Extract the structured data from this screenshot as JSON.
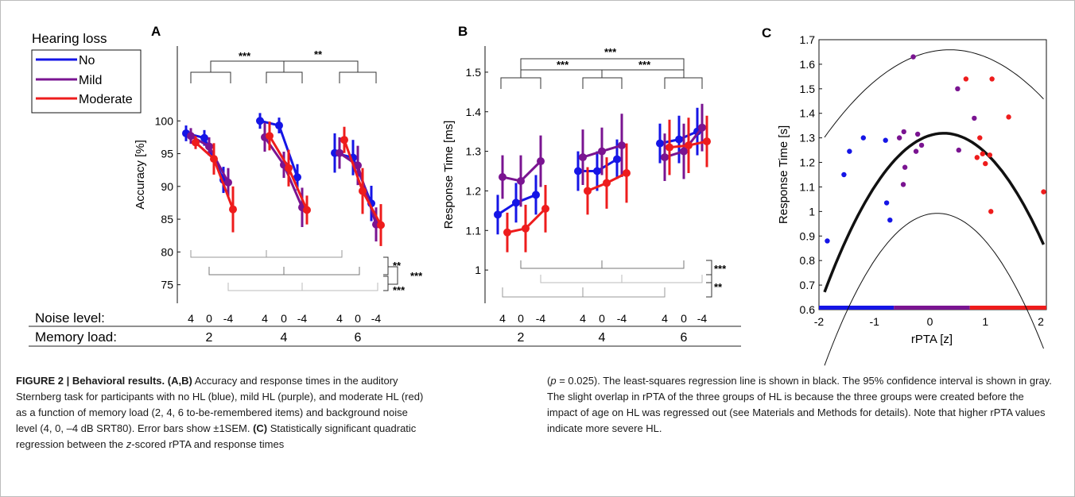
{
  "figure": {
    "panel_labels": {
      "a": "A",
      "b": "B",
      "c": "C"
    },
    "legend": {
      "title": "Hearing loss",
      "items": [
        {
          "label": "No",
          "color": "#1515e6"
        },
        {
          "label": "Mild",
          "color": "#7a1491"
        },
        {
          "label": "Moderate",
          "color": "#ee1c1c"
        }
      ]
    },
    "row_labels": {
      "noise": "Noise level:",
      "memory": "Memory load:"
    },
    "noise_levels": [
      "4",
      "0",
      "-4"
    ],
    "memory_loads": [
      "2",
      "4",
      "6"
    ],
    "significance": {
      "a_top_left": "***",
      "a_top_right": "**",
      "a_bottom_1": "**",
      "a_bottom_2": "***",
      "a_bottom_3": "***",
      "b_top": "***",
      "b_mid_left": "***",
      "b_mid_right": "***",
      "b_bottom_1": "***",
      "b_bottom_2": "**"
    }
  },
  "chart_data": [
    {
      "type": "line",
      "panel": "A",
      "ylabel": "Accuracy [%]",
      "ylim": [
        73.5,
        105
      ],
      "yticks": [
        "75",
        "80",
        "85",
        "90",
        "95",
        "100"
      ],
      "x_groups": [
        "2",
        "4",
        "6"
      ],
      "x_levels": [
        "4",
        "0",
        "-4"
      ],
      "series": [
        {
          "name": "No",
          "color": "#1515e6",
          "values": [
            [
              98.1,
              97.4,
              91.0
            ],
            [
              100.0,
              99.3,
              91.4
            ],
            [
              95.1,
              94.4,
              87.4
            ]
          ],
          "err": [
            1.2,
            1.2,
            2.0,
            1.2,
            1.2,
            2.0,
            3.0,
            2.7,
            2.7
          ]
        },
        {
          "name": "Mild",
          "color": "#7a1491",
          "values": [
            [
              97.7,
              96.1,
              90.6
            ],
            [
              97.5,
              93.3,
              86.8
            ],
            [
              95.1,
              93.2,
              84.2
            ]
          ],
          "err": [
            1.2,
            1.4,
            2.2,
            2.2,
            2.0,
            3.0,
            2.4,
            3.0,
            2.6
          ]
        },
        {
          "name": "Moderate",
          "color": "#ee1c1c",
          "values": [
            [
              96.7,
              94.2,
              86.5
            ],
            [
              97.7,
              92.8,
              86.4
            ],
            [
              97.1,
              89.3,
              84.1
            ]
          ],
          "err": [
            1.0,
            2.4,
            3.5,
            2.2,
            2.8,
            2.2,
            2.0,
            3.5,
            3.2
          ]
        }
      ]
    },
    {
      "type": "line",
      "panel": "B",
      "ylabel": "Response Time [ms]",
      "ylim": [
        0.92,
        1.56
      ],
      "yticks": [
        "1",
        "1.1",
        "1.2",
        "1.3",
        "1.4",
        "1.5"
      ],
      "x_groups": [
        "2",
        "4",
        "6"
      ],
      "x_levels": [
        "4",
        "0",
        "-4"
      ],
      "series": [
        {
          "name": "No",
          "color": "#1515e6",
          "values": [
            [
              1.14,
              1.17,
              1.19
            ],
            [
              1.25,
              1.25,
              1.28
            ],
            [
              1.32,
              1.33,
              1.35
            ]
          ],
          "err": [
            0.05,
            0.05,
            0.05,
            0.05,
            0.05,
            0.05,
            0.05,
            0.06,
            0.06
          ]
        },
        {
          "name": "Mild",
          "color": "#7a1491",
          "values": [
            [
              1.235,
              1.225,
              1.275
            ],
            [
              1.285,
              1.3,
              1.315
            ],
            [
              1.285,
              1.3,
              1.36
            ]
          ],
          "err": [
            0.055,
            0.065,
            0.065,
            0.07,
            0.06,
            0.08,
            0.06,
            0.07,
            0.06
          ]
        },
        {
          "name": "Moderate",
          "color": "#ee1c1c",
          "values": [
            [
              1.095,
              1.105,
              1.155
            ],
            [
              1.2,
              1.22,
              1.245
            ],
            [
              1.31,
              1.315,
              1.325
            ]
          ],
          "err": [
            0.05,
            0.06,
            0.06,
            0.06,
            0.065,
            0.075,
            0.07,
            0.07,
            0.065
          ]
        }
      ]
    },
    {
      "type": "scatter",
      "panel": "C",
      "xlabel": "rPTA [z]",
      "ylabel": "Response Time [s]",
      "xlim": [
        -2,
        2.1
      ],
      "ylim": [
        0.6,
        1.7
      ],
      "xticks": [
        "-2",
        "-1",
        "0",
        "1",
        "2"
      ],
      "yticks": [
        "0.6",
        "0.7",
        "0.8",
        "0.9",
        "1",
        "1.1",
        "1.2",
        "1.3",
        "1.4",
        "1.5",
        "1.6",
        "1.7"
      ],
      "group_bar": [
        {
          "color": "#1515e6",
          "from": -2,
          "to": -0.65
        },
        {
          "color": "#7a1491",
          "from": -0.65,
          "to": 0.72
        },
        {
          "color": "#ee1c1c",
          "from": 0.72,
          "to": 2.1
        }
      ],
      "points": [
        {
          "x": -1.85,
          "y": 0.88,
          "color": "#1515e6"
        },
        {
          "x": -1.55,
          "y": 1.15,
          "color": "#1515e6"
        },
        {
          "x": -1.45,
          "y": 1.245,
          "color": "#1515e6"
        },
        {
          "x": -1.2,
          "y": 1.3,
          "color": "#1515e6"
        },
        {
          "x": -0.8,
          "y": 1.29,
          "color": "#1515e6"
        },
        {
          "x": -0.78,
          "y": 1.035,
          "color": "#1515e6"
        },
        {
          "x": -0.72,
          "y": 0.965,
          "color": "#1515e6"
        },
        {
          "x": -0.55,
          "y": 1.3,
          "color": "#7a1491"
        },
        {
          "x": -0.47,
          "y": 1.325,
          "color": "#7a1491"
        },
        {
          "x": -0.45,
          "y": 1.18,
          "color": "#7a1491"
        },
        {
          "x": -0.48,
          "y": 1.11,
          "color": "#7a1491"
        },
        {
          "x": -0.3,
          "y": 1.63,
          "color": "#7a1491"
        },
        {
          "x": -0.22,
          "y": 1.315,
          "color": "#7a1491"
        },
        {
          "x": -0.25,
          "y": 1.245,
          "color": "#7a1491"
        },
        {
          "x": -0.15,
          "y": 1.27,
          "color": "#7a1491"
        },
        {
          "x": 0.5,
          "y": 1.5,
          "color": "#7a1491"
        },
        {
          "x": 0.52,
          "y": 1.25,
          "color": "#7a1491"
        },
        {
          "x": 0.8,
          "y": 1.38,
          "color": "#7a1491"
        },
        {
          "x": 0.65,
          "y": 1.54,
          "color": "#ee1c1c"
        },
        {
          "x": 0.85,
          "y": 1.22,
          "color": "#ee1c1c"
        },
        {
          "x": 0.9,
          "y": 1.3,
          "color": "#ee1c1c"
        },
        {
          "x": 0.95,
          "y": 1.235,
          "color": "#ee1c1c"
        },
        {
          "x": 1.0,
          "y": 1.195,
          "color": "#ee1c1c"
        },
        {
          "x": 1.08,
          "y": 1.23,
          "color": "#ee1c1c"
        },
        {
          "x": 1.1,
          "y": 1.0,
          "color": "#ee1c1c"
        },
        {
          "x": 1.12,
          "y": 1.54,
          "color": "#ee1c1c"
        },
        {
          "x": 1.42,
          "y": 1.385,
          "color": "#ee1c1c"
        },
        {
          "x": 2.05,
          "y": 1.08,
          "color": "#ee1c1c"
        }
      ],
      "regression": {
        "a": 1.31,
        "b": 0.07,
        "c": -0.14
      },
      "ci_upper": {
        "a": 1.65,
        "b": 0.05,
        "c": -0.07
      },
      "ci_lower": {
        "a": 0.99,
        "b": 0.04,
        "c": -0.15
      }
    }
  ],
  "caption_left": {
    "heading": "FIGURE 2 | Behavioral results.",
    "label_ab": "(A,B)",
    "text_ab": "Accuracy and response times in the auditory Sternberg task for participants with no HL (blue), mild HL (purple), and moderate HL (red) as a function of memory load (2, 4, 6 to-be-remembered items) and background noise level (4, 0, –4 dB SRT80). Error bars show ±1SEM.",
    "label_c": "(C)",
    "text_c_1": "Statistically significant quadratic regression between the",
    "text_c_z": "z",
    "text_c_2": "-scored rPTA and response times"
  },
  "caption_right": {
    "open": "(",
    "p": "p",
    "eq": " = 0.025). The least-squares regression line is shown in black. The 95% confidence interval is shown in gray. The slight overlap in rPTA of the three groups of HL is because the three groups were created before the impact of age on HL was regressed out (see Materials and Methods for details). Note that higher rPTA values indicate more severe HL."
  }
}
